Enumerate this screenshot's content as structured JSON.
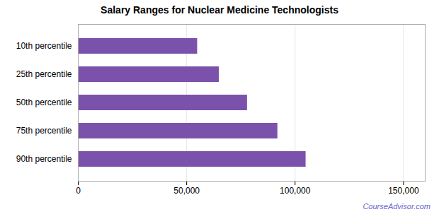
{
  "chart_data": {
    "type": "bar",
    "orientation": "horizontal",
    "title": "Salary Ranges for Nuclear Medicine Technologists",
    "categories": [
      "10th percentile",
      "25th percentile",
      "50th percentile",
      "75th percentile",
      "90th percentile"
    ],
    "values": [
      55000,
      65000,
      78000,
      92000,
      105000
    ],
    "color": "#7B52AB",
    "xlim": [
      0,
      160000
    ],
    "xticks": [
      0,
      {
        "value": 50000,
        "label": "50,000"
      },
      {
        "value": 100000,
        "label": "100,000"
      },
      {
        "value": 150000,
        "label": "150,000"
      }
    ],
    "grid": true,
    "annotations": [
      {
        "text": "CourseAdvisor.com",
        "color": "#6666cc"
      }
    ]
  }
}
